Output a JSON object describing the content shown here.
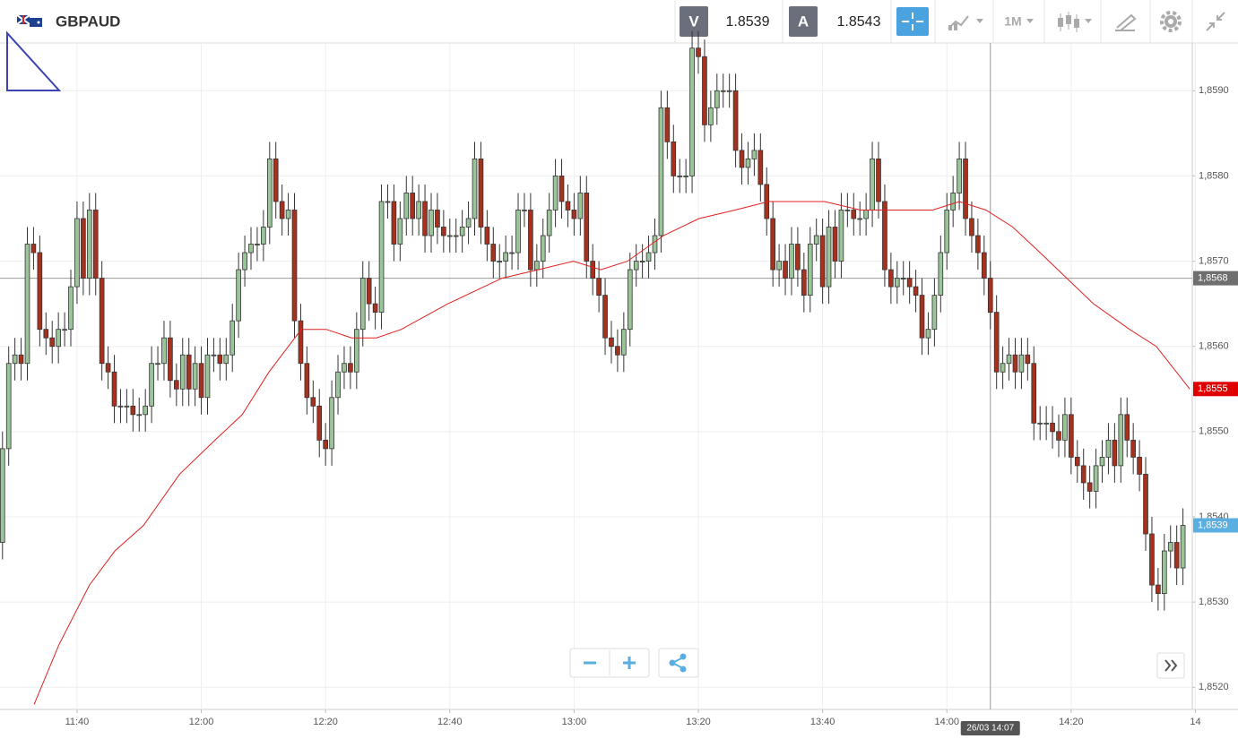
{
  "header": {
    "symbol": "GBPAUD",
    "sell_label": "V",
    "sell_price": "1.8539",
    "buy_label": "A",
    "buy_price": "1.8543",
    "timeframe": "1M"
  },
  "chart_data": {
    "type": "candlestick",
    "up_color": "#9cc49a",
    "down_color": "#a8311e",
    "outline_color": "#333333",
    "grid": true,
    "xlim": [
      687.6,
      879.5
    ],
    "ylim": [
      1.85174,
      1.85956
    ],
    "xticks": [
      {
        "value": 700,
        "label": "11:40"
      },
      {
        "value": 720,
        "label": "12:00"
      },
      {
        "value": 740,
        "label": "12:20"
      },
      {
        "value": 760,
        "label": "12:40"
      },
      {
        "value": 780,
        "label": "13:00"
      },
      {
        "value": 800,
        "label": "13:20"
      },
      {
        "value": 820,
        "label": "13:40"
      },
      {
        "value": 840,
        "label": "14:00"
      },
      {
        "value": 860,
        "label": "14:20"
      },
      {
        "value": 880,
        "label": "14"
      }
    ],
    "yticks": [
      {
        "value": 1.852,
        "label": "1,8520"
      },
      {
        "value": 1.853,
        "label": "1,8530"
      },
      {
        "value": 1.854,
        "label": "1,8540"
      },
      {
        "value": 1.855,
        "label": "1,8550"
      },
      {
        "value": 1.856,
        "label": "1,8560"
      },
      {
        "value": 1.857,
        "label": "1,8570"
      },
      {
        "value": 1.858,
        "label": "1,8580"
      },
      {
        "value": 1.859,
        "label": "1,8590"
      }
    ],
    "x": [
      688,
      689,
      690,
      691,
      692,
      693,
      694,
      695,
      696,
      697,
      698,
      699,
      700,
      701,
      702,
      703,
      704,
      705,
      706,
      707,
      708,
      709,
      710,
      711,
      712,
      713,
      714,
      715,
      716,
      717,
      718,
      719,
      720,
      721,
      722,
      723,
      724,
      725,
      726,
      727,
      728,
      729,
      730,
      731,
      732,
      733,
      734,
      735,
      736,
      737,
      738,
      739,
      740,
      741,
      742,
      743,
      744,
      745,
      746,
      747,
      748,
      749,
      750,
      751,
      752,
      753,
      754,
      755,
      756,
      757,
      758,
      759,
      760,
      761,
      762,
      763,
      764,
      765,
      766,
      767,
      768,
      769,
      770,
      771,
      772,
      773,
      774,
      775,
      776,
      777,
      778,
      779,
      780,
      781,
      782,
      783,
      784,
      785,
      786,
      787,
      788,
      789,
      790,
      791,
      792,
      793,
      794,
      795,
      796,
      797,
      798,
      799,
      800,
      801,
      802,
      803,
      804,
      805,
      806,
      807,
      808,
      809,
      810,
      811,
      812,
      813,
      814,
      815,
      816,
      817,
      818,
      819,
      820,
      821,
      822,
      823,
      824,
      825,
      826,
      827,
      828,
      829,
      830,
      831,
      832,
      833,
      834,
      835,
      836,
      837,
      838,
      839,
      840,
      841,
      842,
      843,
      844,
      845,
      846,
      847,
      848,
      849,
      850,
      851,
      852,
      853,
      854,
      855,
      856,
      857,
      858,
      859,
      860,
      861,
      862,
      863,
      864,
      865,
      866,
      867,
      868,
      869,
      870,
      871,
      872,
      873,
      874,
      875,
      876,
      877,
      878
    ],
    "open": [
      1.8537,
      1.8548,
      1.8558,
      1.8559,
      1.8558,
      1.8572,
      1.8571,
      1.8562,
      1.8561,
      1.856,
      1.8562,
      1.8562,
      1.8567,
      1.8575,
      1.8568,
      1.8576,
      1.8568,
      1.8558,
      1.8557,
      1.8553,
      1.8553,
      1.8553,
      1.8552,
      1.8552,
      1.8553,
      1.8558,
      1.8558,
      1.8561,
      1.8556,
      1.8555,
      1.8559,
      1.8555,
      1.8558,
      1.8554,
      1.8559,
      1.8559,
      1.8558,
      1.8559,
      1.8563,
      1.8569,
      1.8571,
      1.8572,
      1.8572,
      1.8574,
      1.8582,
      1.8577,
      1.8575,
      1.8576,
      1.8563,
      1.8558,
      1.8554,
      1.8553,
      1.8549,
      1.8548,
      1.8554,
      1.8557,
      1.8558,
      1.8557,
      1.8562,
      1.8568,
      1.8565,
      1.8564,
      1.8577,
      1.8577,
      1.8572,
      1.8575,
      1.8578,
      1.8575,
      1.8577,
      1.8573,
      1.8576,
      1.8574,
      1.8573,
      1.8573,
      1.8573,
      1.8574,
      1.8575,
      1.8582,
      1.8574,
      1.8572,
      1.857,
      1.857,
      1.8571,
      1.8571,
      1.8576,
      1.8576,
      1.8569,
      1.857,
      1.8573,
      1.8576,
      1.858,
      1.8577,
      1.8576,
      1.8575,
      1.8578,
      1.857,
      1.8568,
      1.8566,
      1.8561,
      1.856,
      1.8559,
      1.8562,
      1.8569,
      1.857,
      1.857,
      1.8571,
      1.8573,
      1.8588,
      1.8584,
      1.858,
      1.858,
      1.858,
      1.8595,
      1.8594,
      1.8586,
      1.8588,
      1.859,
      1.859,
      1.859,
      1.8583,
      1.8581,
      1.8582,
      1.8583,
      1.8579,
      1.8575,
      1.8569,
      1.857,
      1.8568,
      1.8572,
      1.8569,
      1.8566,
      1.8572,
      1.8573,
      1.8567,
      1.8574,
      1.857,
      1.8576,
      1.8576,
      1.8575,
      1.8575,
      1.8576,
      1.8582,
      1.8577,
      1.8569,
      1.8567,
      1.8568,
      1.8568,
      1.8567,
      1.8566,
      1.8561,
      1.8562,
      1.8566,
      1.8571,
      1.8576,
      1.8578,
      1.8582,
      1.8575,
      1.8573,
      1.8571,
      1.8568,
      1.8564,
      1.8557,
      1.8558,
      1.8559,
      1.8557,
      1.8559,
      1.8558,
      1.8551,
      1.8551,
      1.8551,
      1.855,
      1.8549,
      1.8552,
      1.8547,
      1.8546,
      1.8544,
      1.8543,
      1.8546,
      1.8547,
      1.8549,
      1.8546,
      1.8552,
      1.8549,
      1.8547,
      1.8545,
      1.8538,
      1.8532,
      1.8531,
      1.8536,
      1.8537,
      1.8534
    ],
    "high": [
      1.855,
      1.856,
      1.8561,
      1.8561,
      1.8574,
      1.8574,
      1.8573,
      1.8564,
      1.8563,
      1.8564,
      1.8564,
      1.8569,
      1.8577,
      1.8577,
      1.8578,
      1.8578,
      1.857,
      1.856,
      1.8559,
      1.8555,
      1.8555,
      1.8555,
      1.8554,
      1.8555,
      1.856,
      1.856,
      1.8563,
      1.8563,
      1.8558,
      1.8561,
      1.8561,
      1.856,
      1.856,
      1.8561,
      1.8561,
      1.8561,
      1.8561,
      1.8565,
      1.8571,
      1.8573,
      1.8574,
      1.8574,
      1.8576,
      1.8584,
      1.8584,
      1.8579,
      1.8578,
      1.8578,
      1.8565,
      1.856,
      1.8556,
      1.8555,
      1.8551,
      1.8556,
      1.8559,
      1.856,
      1.856,
      1.8564,
      1.857,
      1.857,
      1.8567,
      1.8579,
      1.8579,
      1.8579,
      1.8577,
      1.858,
      1.858,
      1.8579,
      1.8579,
      1.8578,
      1.8578,
      1.8576,
      1.8575,
      1.8575,
      1.8576,
      1.8577,
      1.8584,
      1.8584,
      1.8576,
      1.8574,
      1.8572,
      1.8573,
      1.8573,
      1.8578,
      1.8578,
      1.8578,
      1.8572,
      1.8575,
      1.8578,
      1.8582,
      1.8582,
      1.8579,
      1.8578,
      1.858,
      1.858,
      1.8572,
      1.857,
      1.8568,
      1.8563,
      1.8562,
      1.8564,
      1.8571,
      1.8572,
      1.8572,
      1.8573,
      1.8575,
      1.859,
      1.859,
      1.8586,
      1.8582,
      1.8582,
      1.8597,
      1.8597,
      1.8596,
      1.859,
      1.8592,
      1.8592,
      1.8592,
      1.8592,
      1.8585,
      1.8584,
      1.8585,
      1.8585,
      1.8581,
      1.8577,
      1.8572,
      1.8572,
      1.8574,
      1.8574,
      1.8571,
      1.8574,
      1.8575,
      1.8575,
      1.8576,
      1.8576,
      1.8578,
      1.8578,
      1.8578,
      1.8577,
      1.8578,
      1.8584,
      1.8584,
      1.8579,
      1.8571,
      1.857,
      1.857,
      1.857,
      1.8569,
      1.8568,
      1.8564,
      1.8568,
      1.8573,
      1.8578,
      1.858,
      1.8584,
      1.8584,
      1.8577,
      1.8575,
      1.8573,
      1.857,
      1.8566,
      1.856,
      1.8561,
      1.8561,
      1.8561,
      1.8561,
      1.856,
      1.8553,
      1.8553,
      1.8553,
      1.8552,
      1.8554,
      1.8554,
      1.8549,
      1.8548,
      1.8546,
      1.8548,
      1.8549,
      1.8551,
      1.8551,
      1.8554,
      1.8554,
      1.8551,
      1.8549,
      1.8547,
      1.854,
      1.8534,
      1.8538,
      1.8539,
      1.8539,
      1.8541
    ],
    "low": [
      1.8535,
      1.8546,
      1.8556,
      1.8556,
      1.8556,
      1.8569,
      1.856,
      1.8559,
      1.8558,
      1.8558,
      1.856,
      1.856,
      1.8565,
      1.8566,
      1.8566,
      1.8566,
      1.8556,
      1.8555,
      1.8551,
      1.8551,
      1.8551,
      1.855,
      1.855,
      1.855,
      1.8551,
      1.8556,
      1.8556,
      1.8554,
      1.8553,
      1.8553,
      1.8553,
      1.8553,
      1.8552,
      1.8552,
      1.8557,
      1.8556,
      1.8556,
      1.8557,
      1.8561,
      1.8567,
      1.8569,
      1.857,
      1.857,
      1.8572,
      1.8575,
      1.8573,
      1.8573,
      1.8561,
      1.8556,
      1.8552,
      1.8551,
      1.8547,
      1.8546,
      1.8546,
      1.8552,
      1.8555,
      1.8555,
      1.8555,
      1.856,
      1.8563,
      1.8562,
      1.8562,
      1.8575,
      1.857,
      1.857,
      1.8573,
      1.8573,
      1.8573,
      1.8571,
      1.8571,
      1.8572,
      1.8571,
      1.8571,
      1.8571,
      1.8571,
      1.8572,
      1.8573,
      1.8572,
      1.857,
      1.8568,
      1.8568,
      1.8568,
      1.8569,
      1.8569,
      1.8574,
      1.8567,
      1.8567,
      1.8568,
      1.8571,
      1.8574,
      1.8575,
      1.8574,
      1.8573,
      1.8573,
      1.8568,
      1.8566,
      1.8564,
      1.8559,
      1.8558,
      1.8557,
      1.8557,
      1.856,
      1.8567,
      1.8568,
      1.8568,
      1.8569,
      1.8571,
      1.8582,
      1.8578,
      1.8578,
      1.8578,
      1.8578,
      1.8592,
      1.8584,
      1.8584,
      1.8586,
      1.8588,
      1.8588,
      1.8581,
      1.8579,
      1.8579,
      1.858,
      1.8577,
      1.8573,
      1.8567,
      1.8567,
      1.8566,
      1.8566,
      1.8567,
      1.8564,
      1.8564,
      1.857,
      1.8565,
      1.8565,
      1.8568,
      1.8568,
      1.8574,
      1.8573,
      1.8573,
      1.8573,
      1.8574,
      1.8575,
      1.8567,
      1.8565,
      1.8565,
      1.8566,
      1.8565,
      1.8564,
      1.8559,
      1.8559,
      1.856,
      1.8564,
      1.8569,
      1.8574,
      1.8576,
      1.8573,
      1.8571,
      1.8569,
      1.8566,
      1.8562,
      1.8555,
      1.8555,
      1.8556,
      1.8555,
      1.8555,
      1.8556,
      1.8549,
      1.8549,
      1.8549,
      1.8548,
      1.8547,
      1.8547,
      1.8545,
      1.8544,
      1.8542,
      1.8541,
      1.8541,
      1.8544,
      1.8545,
      1.8544,
      1.8544,
      1.8547,
      1.8545,
      1.8543,
      1.8536,
      1.853,
      1.8529,
      1.8529,
      1.8534,
      1.8532,
      1.8532
    ],
    "close": [
      1.8548,
      1.8558,
      1.8559,
      1.8558,
      1.8572,
      1.8571,
      1.8562,
      1.8561,
      1.856,
      1.8562,
      1.8562,
      1.8567,
      1.8575,
      1.8568,
      1.8576,
      1.8568,
      1.8558,
      1.8557,
      1.8553,
      1.8553,
      1.8553,
      1.8552,
      1.8552,
      1.8553,
      1.8558,
      1.8558,
      1.8561,
      1.8556,
      1.8555,
      1.8559,
      1.8555,
      1.8558,
      1.8554,
      1.8559,
      1.8559,
      1.8558,
      1.8559,
      1.8563,
      1.8569,
      1.8571,
      1.8572,
      1.8572,
      1.8574,
      1.8582,
      1.8577,
      1.8575,
      1.8576,
      1.8563,
      1.8558,
      1.8554,
      1.8553,
      1.8549,
      1.8548,
      1.8554,
      1.8557,
      1.8558,
      1.8557,
      1.8562,
      1.8568,
      1.8565,
      1.8564,
      1.8577,
      1.8577,
      1.8572,
      1.8575,
      1.8578,
      1.8575,
      1.8577,
      1.8573,
      1.8576,
      1.8574,
      1.8573,
      1.8573,
      1.8573,
      1.8574,
      1.8575,
      1.8582,
      1.8574,
      1.8572,
      1.857,
      1.857,
      1.8571,
      1.8571,
      1.8576,
      1.8576,
      1.8569,
      1.857,
      1.8573,
      1.8576,
      1.858,
      1.8577,
      1.8576,
      1.8575,
      1.8578,
      1.857,
      1.8568,
      1.8566,
      1.8561,
      1.856,
      1.8559,
      1.8562,
      1.8569,
      1.857,
      1.857,
      1.8571,
      1.8573,
      1.8588,
      1.8584,
      1.858,
      1.858,
      1.858,
      1.8595,
      1.8594,
      1.8586,
      1.8588,
      1.859,
      1.859,
      1.859,
      1.8583,
      1.8581,
      1.8582,
      1.8583,
      1.8579,
      1.8575,
      1.8569,
      1.857,
      1.8568,
      1.8572,
      1.8569,
      1.8566,
      1.8572,
      1.8573,
      1.8567,
      1.8574,
      1.857,
      1.8576,
      1.8576,
      1.8575,
      1.8575,
      1.8576,
      1.8582,
      1.8577,
      1.8569,
      1.8567,
      1.8568,
      1.8568,
      1.8567,
      1.8566,
      1.8561,
      1.8562,
      1.8566,
      1.8571,
      1.8576,
      1.8578,
      1.8582,
      1.8575,
      1.8573,
      1.8571,
      1.8568,
      1.8564,
      1.8557,
      1.8558,
      1.8559,
      1.8557,
      1.8559,
      1.8558,
      1.8551,
      1.8551,
      1.8551,
      1.855,
      1.8549,
      1.8552,
      1.8547,
      1.8546,
      1.8544,
      1.8543,
      1.8546,
      1.8547,
      1.8549,
      1.8546,
      1.8552,
      1.8549,
      1.8547,
      1.8545,
      1.8538,
      1.8532,
      1.8531,
      1.8536,
      1.8537,
      1.8534,
      1.8539
    ],
    "ma": {
      "color": "#e02020",
      "x": [
        693.1,
        697.1,
        702.0,
        706.1,
        710.7,
        716.5,
        722.2,
        726.6,
        730.9,
        736.1,
        740.1,
        744.2,
        748.2,
        752.2,
        759.7,
        768.4,
        774.2,
        779.9,
        784.3,
        788.6,
        794.4,
        800.1,
        805.9,
        811.3,
        814.6,
        820.3,
        826.1,
        831.9,
        837.7,
        842.0,
        846.3,
        850.6,
        855.0,
        859.3,
        863.6,
        869.4,
        873.7,
        879.1
      ],
      "values": [
        1.8518,
        1.8525,
        1.8532,
        1.8536,
        1.8539,
        1.8545,
        1.8549,
        1.8552,
        1.8557,
        1.8562,
        1.8562,
        1.8561,
        1.8561,
        1.8562,
        1.8565,
        1.8568,
        1.8569,
        1.857,
        1.8569,
        1.857,
        1.8573,
        1.8575,
        1.8576,
        1.8577,
        1.8577,
        1.8577,
        1.8576,
        1.8576,
        1.8576,
        1.8577,
        1.8576,
        1.8574,
        1.8571,
        1.8568,
        1.8565,
        1.8562,
        1.856,
        1.8555
      ]
    },
    "crosshair": {
      "x": 847,
      "x_label": "26/03 14:07",
      "y": 1.8568,
      "y_label": "1,8568"
    },
    "price_tags": [
      {
        "value": 1.8555,
        "label": "1,8555",
        "color": "#e00000"
      },
      {
        "value": 1.8539,
        "label": "1,8539",
        "color": "#5aaee0"
      }
    ]
  }
}
